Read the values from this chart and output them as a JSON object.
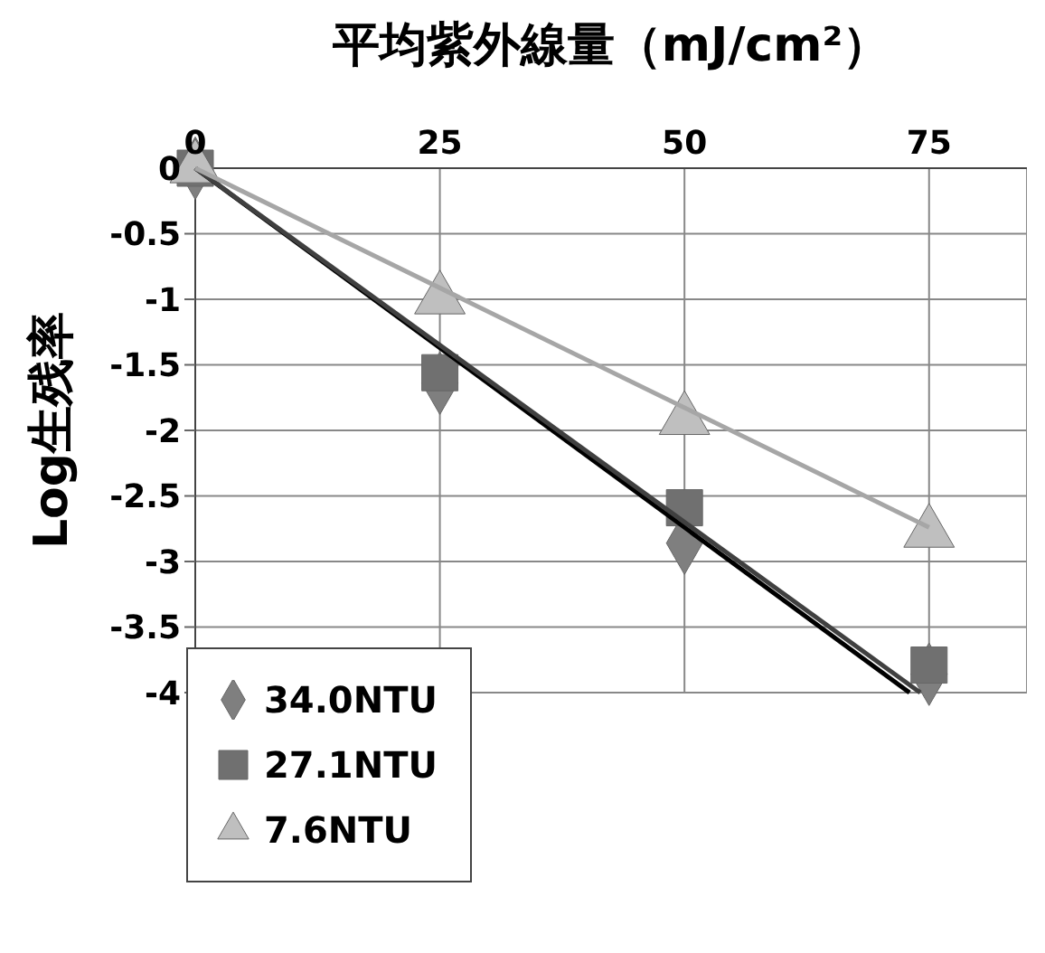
{
  "chart_data": {
    "type": "scatter",
    "xlabel": "平均紫外線量（mJ/cm²）",
    "ylabel": "Log生残率",
    "x": [
      0,
      25,
      50,
      75
    ],
    "xlim": [
      0,
      85
    ],
    "xticks": [
      0,
      25,
      50,
      75
    ],
    "ylim": [
      -4,
      0
    ],
    "yticks": [
      0,
      -0.5,
      -1,
      -1.5,
      -2,
      -2.5,
      -3,
      -3.5,
      -4
    ],
    "grid": true,
    "legend": "bottom left",
    "series": [
      {
        "name": "34.0NTU",
        "color": "#7f7f7f",
        "marker": "diamond",
        "values": [
          0,
          -1.64,
          -2.86,
          -3.86
        ]
      },
      {
        "name": "27.1NTU",
        "color": "#707070",
        "marker": "square",
        "values": [
          0,
          -1.56,
          -2.59,
          -3.79
        ]
      },
      {
        "name": "7.6NTU",
        "color": "#bfbfbf",
        "marker": "triangle",
        "values": [
          0,
          -1.0,
          -1.92,
          -2.78
        ]
      },
      {
        "type": "line",
        "color": "#000000",
        "marker": "none",
        "x": [
          0,
          73
        ],
        "values": [
          0,
          -4
        ]
      },
      {
        "type": "line",
        "color": "#404040",
        "marker": "none",
        "x": [
          0,
          74.1
        ],
        "values": [
          0,
          -4
        ]
      },
      {
        "type": "line",
        "color": "#a6a6a6",
        "marker": "none",
        "x": [
          0,
          75
        ],
        "values": [
          0,
          -2.74
        ]
      }
    ]
  }
}
